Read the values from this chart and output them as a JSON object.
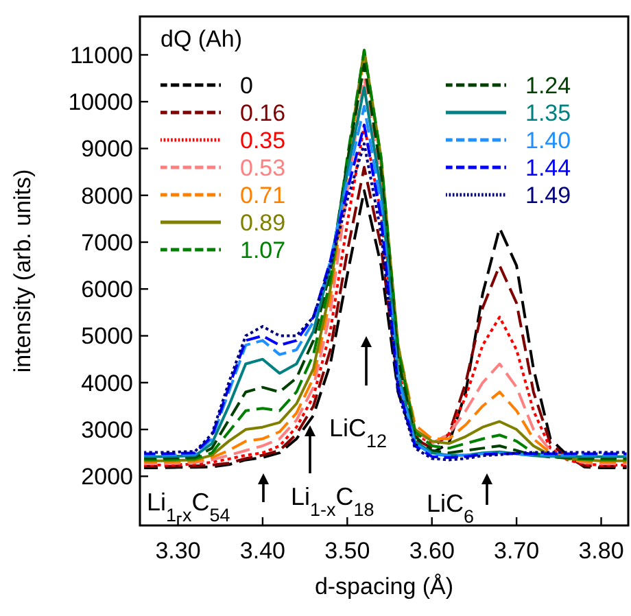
{
  "chart_data": {
    "type": "line",
    "xlabel": "d-spacing (Å)",
    "ylabel": "intensity (arb. units)",
    "legend_title": "dQ (Ah)",
    "legend": "top",
    "grid": false,
    "xlim": [
      3.255,
      3.832
    ],
    "ylim": [
      950,
      11820
    ],
    "xticks": [
      {
        "value": 3.3,
        "label": "3.30"
      },
      {
        "value": 3.4,
        "label": "3.40"
      },
      {
        "value": 3.5,
        "label": "3.50"
      },
      {
        "value": 3.6,
        "label": "3.60"
      },
      {
        "value": 3.7,
        "label": "3.70"
      },
      {
        "value": 3.8,
        "label": "3.80"
      }
    ],
    "yticks": [
      2000,
      3000,
      4000,
      5000,
      6000,
      7000,
      8000,
      9000,
      10000,
      11000
    ],
    "x": [
      3.26,
      3.28,
      3.3,
      3.32,
      3.34,
      3.36,
      3.38,
      3.4,
      3.42,
      3.44,
      3.46,
      3.48,
      3.5,
      3.52,
      3.54,
      3.56,
      3.58,
      3.6,
      3.62,
      3.64,
      3.66,
      3.68,
      3.7,
      3.72,
      3.74,
      3.76,
      3.78,
      3.8,
      3.83
    ],
    "series": [
      {
        "name": "0",
        "color": "#000000",
        "line_style": "dashed",
        "values": [
          2180,
          2180,
          2190,
          2190,
          2200,
          2250,
          2350,
          2400,
          2500,
          2800,
          3300,
          4400,
          6300,
          8100,
          6500,
          3800,
          2700,
          2500,
          2700,
          3800,
          5900,
          7300,
          6500,
          4300,
          2800,
          2450,
          2200,
          2180,
          2180
        ]
      },
      {
        "name": "0.16",
        "color": "#7f0000",
        "line_style": "dashed",
        "values": [
          2210,
          2210,
          2220,
          2220,
          2240,
          2280,
          2380,
          2450,
          2550,
          2900,
          3500,
          4700,
          6800,
          8600,
          6900,
          4000,
          2800,
          2600,
          2900,
          4000,
          5600,
          6500,
          5700,
          3800,
          2700,
          2400,
          2230,
          2210,
          2210
        ]
      },
      {
        "name": "0.35",
        "color": "#ff0000",
        "line_style": "dotted",
        "values": [
          2240,
          2240,
          2250,
          2260,
          2300,
          2370,
          2450,
          2500,
          2650,
          3050,
          3700,
          5100,
          7400,
          9500,
          7600,
          4300,
          2900,
          2700,
          2900,
          3700,
          4800,
          5400,
          4700,
          3400,
          2600,
          2350,
          2260,
          2240,
          2240
        ]
      },
      {
        "name": "0.53",
        "color": "#ff8080",
        "line_style": "dashed",
        "values": [
          2270,
          2270,
          2280,
          2290,
          2350,
          2450,
          2550,
          2650,
          2800,
          3200,
          3900,
          5500,
          8100,
          10500,
          8300,
          4600,
          3000,
          2700,
          2900,
          3400,
          4000,
          4400,
          3900,
          3000,
          2550,
          2380,
          2290,
          2270,
          2270
        ]
      },
      {
        "name": "0.71",
        "color": "#ff8000",
        "line_style": "dashed",
        "values": [
          2300,
          2300,
          2310,
          2320,
          2400,
          2550,
          2750,
          2800,
          2950,
          3350,
          4100,
          5800,
          8500,
          11000,
          8700,
          4800,
          3100,
          2800,
          2800,
          3100,
          3500,
          3800,
          3400,
          2800,
          2500,
          2370,
          2320,
          2300,
          2300
        ]
      },
      {
        "name": "0.89",
        "color": "#808000",
        "line_style": "solid",
        "values": [
          2330,
          2330,
          2340,
          2350,
          2450,
          2750,
          3000,
          3050,
          3150,
          3550,
          4300,
          6000,
          8700,
          11100,
          8800,
          4800,
          3000,
          2750,
          2700,
          2850,
          3050,
          3170,
          3000,
          2650,
          2450,
          2380,
          2350,
          2330,
          2330
        ]
      },
      {
        "name": "1.07",
        "color": "#008000",
        "line_style": "dashed",
        "values": [
          2360,
          2360,
          2370,
          2380,
          2500,
          2950,
          3400,
          3450,
          3400,
          3800,
          4600,
          6200,
          8800,
          11100,
          8800,
          4700,
          2950,
          2650,
          2600,
          2700,
          2800,
          2880,
          2750,
          2500,
          2420,
          2380,
          2370,
          2360,
          2360
        ]
      },
      {
        "name": "1.24",
        "color": "#004000",
        "line_style": "dashed",
        "values": [
          2390,
          2390,
          2400,
          2410,
          2600,
          3200,
          3800,
          3900,
          3800,
          4100,
          4900,
          6400,
          8700,
          10800,
          8500,
          4500,
          2850,
          2550,
          2500,
          2550,
          2600,
          2650,
          2550,
          2450,
          2410,
          2400,
          2390,
          2390,
          2390
        ]
      },
      {
        "name": "1.35",
        "color": "#008080",
        "line_style": "solid",
        "values": [
          2420,
          2420,
          2430,
          2440,
          2700,
          3500,
          4400,
          4500,
          4200,
          4400,
          5100,
          6500,
          8500,
          10300,
          8100,
          4200,
          2750,
          2500,
          2450,
          2450,
          2500,
          2520,
          2480,
          2440,
          2430,
          2420,
          2420,
          2420,
          2420
        ]
      },
      {
        "name": "1.40",
        "color": "#1e90ff",
        "line_style": "dashed",
        "values": [
          2450,
          2450,
          2460,
          2470,
          2800,
          3800,
          4800,
          4900,
          4600,
          4700,
          5300,
          6600,
          8300,
          9900,
          7800,
          4100,
          2700,
          2470,
          2440,
          2450,
          2480,
          2500,
          2470,
          2460,
          2450,
          2450,
          2450,
          2450,
          2450
        ]
      },
      {
        "name": "1.44",
        "color": "#0000ff",
        "line_style": "dashed",
        "values": [
          2480,
          2480,
          2490,
          2500,
          2850,
          3900,
          4900,
          5000,
          4800,
          4900,
          5400,
          6600,
          8100,
          9500,
          7500,
          3900,
          2650,
          2420,
          2400,
          2420,
          2470,
          2480,
          2490,
          2480,
          2480,
          2480,
          2480,
          2480,
          2480
        ]
      },
      {
        "name": "1.49",
        "color": "#000080",
        "line_style": "dotted",
        "values": [
          2510,
          2510,
          2520,
          2530,
          2900,
          4000,
          5000,
          5200,
          5000,
          5000,
          5400,
          6500,
          7900,
          9100,
          7200,
          3800,
          2600,
          2380,
          2350,
          2380,
          2440,
          2460,
          2500,
          2510,
          2510,
          2510,
          2510,
          2510,
          2510
        ]
      }
    ],
    "annotations": [
      "Li$_{1-x}$C$_{54}$",
      "Li$_{1-x}$C$_{18}$",
      "LiC$_{12}$",
      "LiC$_{6}$"
    ]
  }
}
